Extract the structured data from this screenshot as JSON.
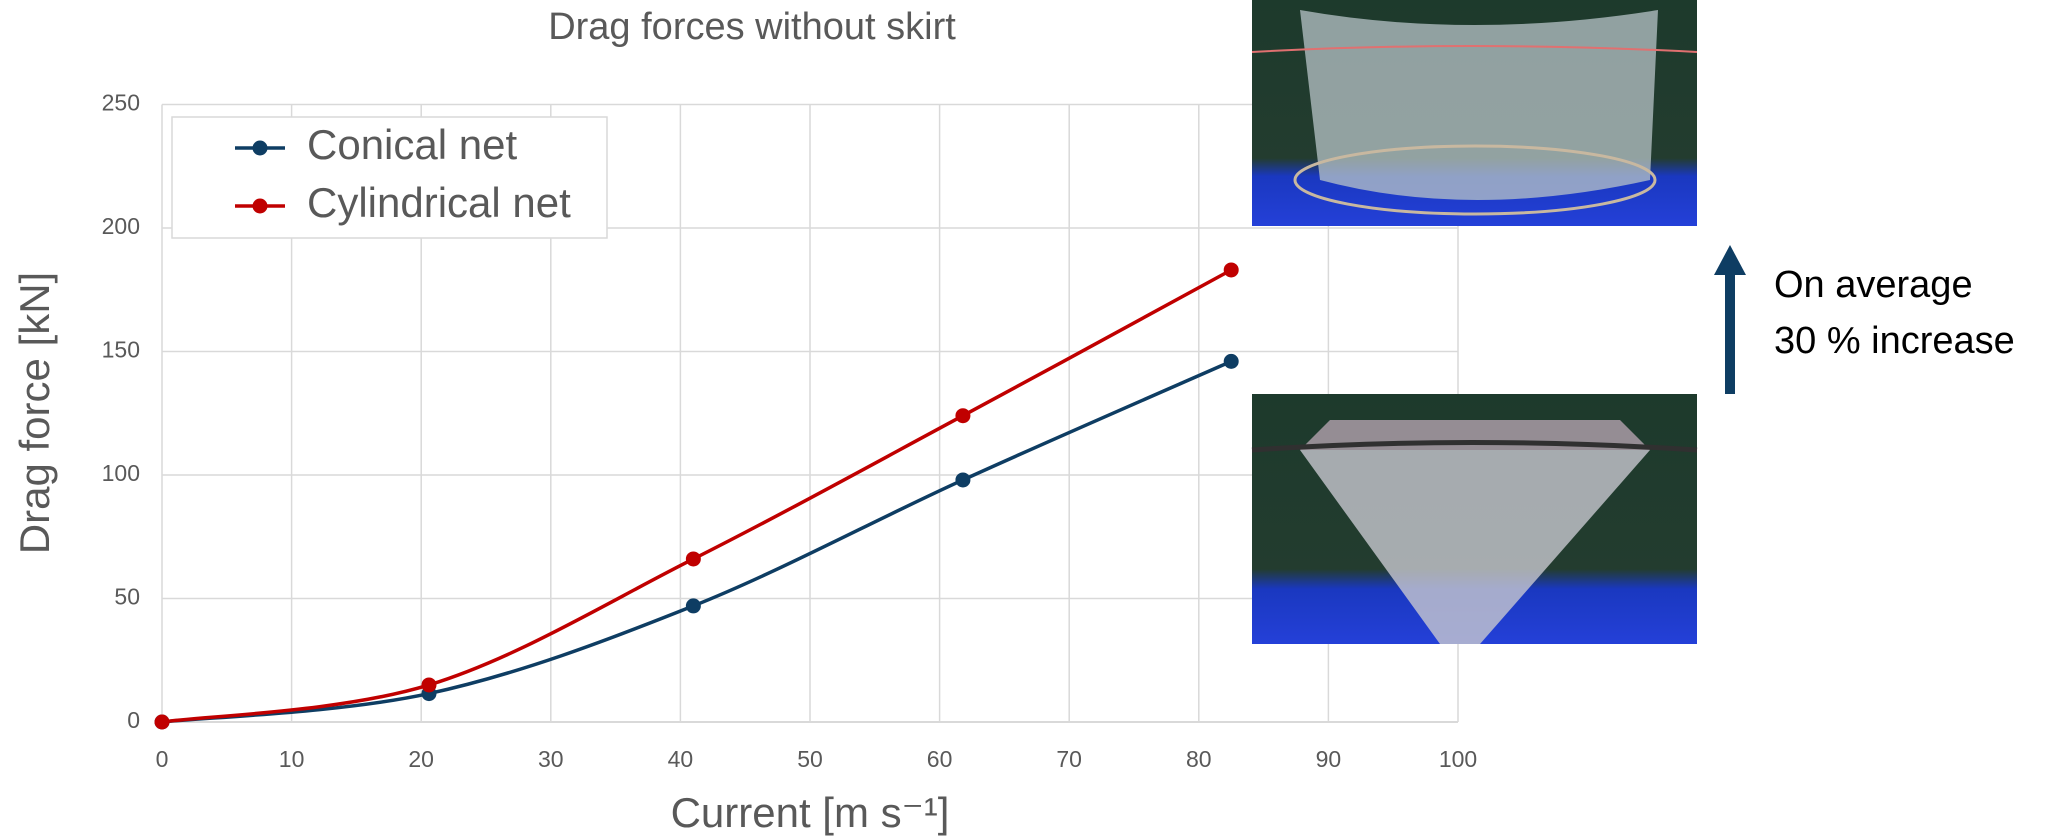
{
  "chart_data": {
    "type": "line",
    "title": "Drag forces without skirt",
    "x_label": "Current [m s⁻¹]",
    "y_label": "Drag force [kN]",
    "series": [
      {
        "name": "Conical net",
        "color": "#0e3d63",
        "x": [
          0,
          20.6,
          41,
          61.8,
          82.5
        ],
        "values": [
          0,
          11.5,
          47,
          98,
          146
        ]
      },
      {
        "name": "Cylindrical net",
        "color": "#c00000",
        "x": [
          0,
          20.6,
          41,
          61.8,
          82.5
        ],
        "values": [
          0,
          15,
          66,
          124,
          183
        ]
      }
    ],
    "xlim": [
      0,
      100
    ],
    "xticks": [
      0,
      10,
      20,
      30,
      40,
      50,
      60,
      70,
      80,
      90,
      100
    ],
    "ylim": [
      0,
      250
    ],
    "yticks": [
      0,
      50,
      100,
      150,
      200,
      250
    ],
    "grid": true,
    "legend": "upper left",
    "annotation": [
      "On average",
      "30 % increase"
    ]
  }
}
